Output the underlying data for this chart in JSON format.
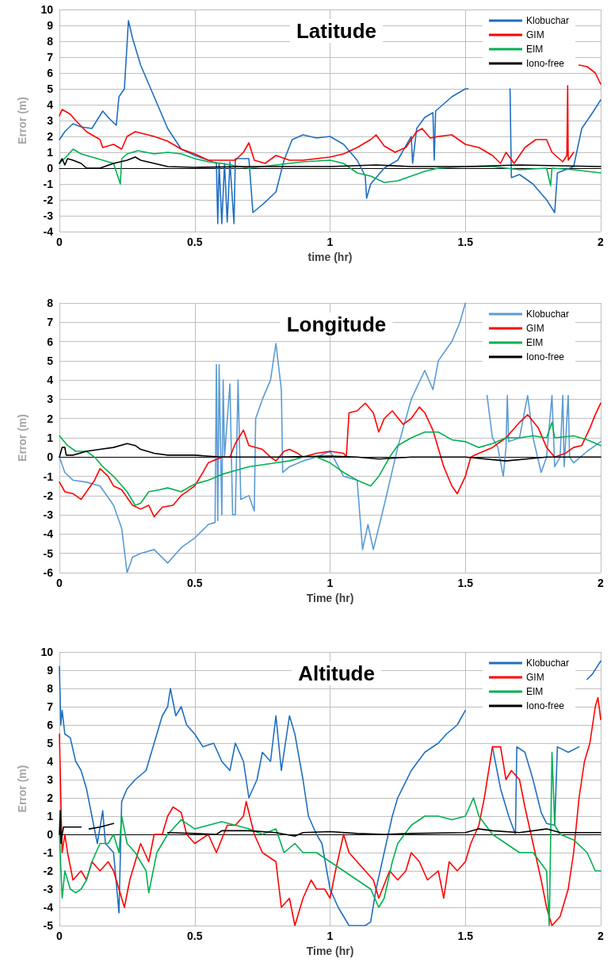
{
  "chart_data": [
    {
      "type": "line",
      "title": "Latitude",
      "xlabel": "time (hr)",
      "ylabel": "Error (m)",
      "xlim": [
        0,
        2
      ],
      "xticks": [
        0,
        0.5,
        1,
        1.5,
        2
      ],
      "ylim": [
        -4,
        10
      ],
      "yticks": [
        -4,
        -3,
        -2,
        -1,
        0,
        1,
        2,
        3,
        4,
        5,
        6,
        7,
        8,
        9,
        10
      ],
      "grid": true,
      "legend": "top right",
      "marker": "none",
      "line_style": "solid",
      "series": [
        {
          "name": "Klobuchar",
          "color": "#1f6fc0",
          "x": [
            0,
            0.02,
            0.05,
            0.08,
            0.12,
            0.16,
            0.18,
            0.21,
            0.22,
            0.24,
            0.255,
            0.27,
            0.3,
            0.35,
            0.4,
            0.45,
            0.5,
            0.55,
            0.58,
            0.585,
            0.59,
            0.6,
            0.61,
            0.62,
            0.63,
            0.645,
            0.65,
            0.7,
            0.715,
            0.75,
            0.8,
            0.83,
            0.86,
            0.9,
            0.95,
            1.0,
            1.05,
            1.1,
            1.13,
            1.135,
            1.15,
            1.2,
            1.25,
            1.3,
            1.305,
            1.32,
            1.35,
            1.38,
            1.385,
            1.39,
            1.45,
            1.5,
            1.51,
            1.54,
            1.665,
            1.67,
            1.7,
            1.75,
            1.8,
            1.83,
            1.84,
            1.9,
            1.93,
            1.97,
            2.0
          ],
          "values": [
            1.8,
            2.3,
            2.8,
            2.6,
            2.5,
            3.6,
            3.2,
            2.7,
            4.5,
            5,
            9.3,
            8.2,
            6.5,
            4.5,
            2.5,
            1.2,
            0.8,
            0.5,
            0.3,
            -3.5,
            0.3,
            -3.5,
            0.3,
            -3.4,
            0.4,
            -3.5,
            0.6,
            0.6,
            -2.8,
            -2.3,
            -1.5,
            0.5,
            1.8,
            2.1,
            1.9,
            2.0,
            1.5,
            0.5,
            -0.5,
            -1.9,
            -1.0,
            0.0,
            0.5,
            2.0,
            0.3,
            2.5,
            3.2,
            3.5,
            0.5,
            3.6,
            4.5,
            5.0,
            5.0,
            null,
            5.0,
            -0.6,
            -0.4,
            -1.0,
            -2.0,
            -2.8,
            -0.3,
            0.1,
            2.5,
            3.5,
            4.3
          ]
        },
        {
          "name": "GIM",
          "color": "#ff0000",
          "x": [
            0,
            0.01,
            0.04,
            0.06,
            0.1,
            0.15,
            0.16,
            0.2,
            0.23,
            0.25,
            0.28,
            0.35,
            0.4,
            0.45,
            0.5,
            0.55,
            0.65,
            0.68,
            0.7,
            0.72,
            0.76,
            0.8,
            0.85,
            0.9,
            0.95,
            1.0,
            1.05,
            1.1,
            1.15,
            1.17,
            1.2,
            1.24,
            1.28,
            1.32,
            1.34,
            1.37,
            1.4,
            1.45,
            1.5,
            1.55,
            1.6,
            1.63,
            1.65,
            1.68,
            1.72,
            1.76,
            1.8,
            1.82,
            1.86,
            1.875,
            1.878,
            1.88,
            1.9,
            1.91,
            1.92,
            1.95,
            1.98,
            2.0
          ],
          "values": [
            3.3,
            3.7,
            3.4,
            3.0,
            2.3,
            1.8,
            1.3,
            1.5,
            1.2,
            2.0,
            2.3,
            2.0,
            1.7,
            1.2,
            0.9,
            0.5,
            0.5,
            1.0,
            1.6,
            0.5,
            0.3,
            0.8,
            0.5,
            0.5,
            0.6,
            0.7,
            0.9,
            1.3,
            1.8,
            2.1,
            1.4,
            1.0,
            1.3,
            2.3,
            2.5,
            1.9,
            2.0,
            2.1,
            1.5,
            1.3,
            0.8,
            0.3,
            1.0,
            0.3,
            1.3,
            1.8,
            1.8,
            1.0,
            0.4,
            0.8,
            5.2,
            0.5,
            1.0,
            null,
            6.5,
            6.4,
            6.0,
            5.3
          ]
        },
        {
          "name": "EIM",
          "color": "#00b050",
          "x": [
            0,
            0.03,
            0.05,
            0.08,
            0.12,
            0.16,
            0.2,
            0.225,
            0.23,
            0.25,
            0.29,
            0.35,
            0.4,
            0.45,
            0.5,
            0.55,
            0.6,
            0.7,
            0.8,
            0.9,
            1.0,
            1.05,
            1.1,
            1.15,
            1.2,
            1.25,
            1.3,
            1.35,
            1.4,
            1.5,
            1.6,
            1.7,
            1.8,
            1.815,
            1.82,
            1.9,
            2.0
          ],
          "values": [
            0.3,
            0.8,
            1.2,
            0.9,
            0.7,
            0.5,
            0.3,
            -1.0,
            0.6,
            0.9,
            1.1,
            0.9,
            1.0,
            0.9,
            0.6,
            0.4,
            0.3,
            0.0,
            0.2,
            0.4,
            0.5,
            0.3,
            -0.3,
            -0.5,
            -0.9,
            -0.8,
            -0.5,
            -0.2,
            0.0,
            0.1,
            0.1,
            -0.1,
            0.0,
            -1.1,
            0.0,
            -0.1,
            -0.3
          ]
        },
        {
          "name": "Iono-free",
          "color": "#000000",
          "x": [
            0,
            0.01,
            0.02,
            0.03,
            0.05,
            0.08,
            0.1,
            0.15,
            0.2,
            0.25,
            0.28,
            0.3,
            0.35,
            0.4,
            0.5,
            0.7,
            1.0,
            1.17,
            1.3,
            1.5,
            1.7,
            2.0
          ],
          "values": [
            0.3,
            0.6,
            0.2,
            0.6,
            0.5,
            0.3,
            0.0,
            0.0,
            0.3,
            0.5,
            0.7,
            0.5,
            0.3,
            0.1,
            0.05,
            0.1,
            0.1,
            0.2,
            0.1,
            0.1,
            0.2,
            0.1
          ]
        }
      ]
    },
    {
      "type": "line",
      "title": "Longitude",
      "xlabel": "Time (hr)",
      "ylabel": "Error (m)",
      "xlim": [
        0,
        2
      ],
      "xticks": [
        0,
        0.5,
        1,
        1.5,
        2
      ],
      "ylim": [
        -6,
        8
      ],
      "yticks": [
        -6,
        -5,
        -4,
        -3,
        -2,
        -1,
        0,
        1,
        2,
        3,
        4,
        5,
        6,
        7,
        8
      ],
      "grid": true,
      "legend": "top right",
      "marker": "none",
      "line_style": "solid",
      "series": [
        {
          "name": "Klobuchar",
          "color": "#5b9bd5",
          "x": [
            0,
            0.02,
            0.05,
            0.1,
            0.15,
            0.2,
            0.23,
            0.25,
            0.27,
            0.3,
            0.35,
            0.4,
            0.45,
            0.5,
            0.55,
            0.575,
            0.58,
            0.585,
            0.59,
            0.6,
            0.605,
            0.61,
            0.63,
            0.64,
            0.65,
            0.66,
            0.67,
            0.7,
            0.72,
            0.725,
            0.75,
            0.78,
            0.8,
            0.82,
            0.825,
            0.85,
            0.9,
            0.95,
            1.0,
            1.05,
            1.1,
            1.12,
            1.14,
            1.16,
            1.2,
            1.25,
            1.3,
            1.35,
            1.38,
            1.4,
            1.45,
            1.48,
            1.5,
            1.54,
            1.58,
            1.6,
            1.62,
            1.64,
            1.65,
            1.655,
            1.66,
            1.7,
            1.73,
            1.75,
            1.78,
            1.8,
            1.82,
            1.83,
            1.85,
            1.86,
            1.865,
            1.88,
            1.885,
            1.9,
            1.95,
            2.0
          ],
          "values": [
            0.0,
            -0.8,
            -1.2,
            -1.3,
            -1.5,
            -2.5,
            -3.7,
            -6.0,
            -5.2,
            -5.0,
            -4.8,
            -5.5,
            -4.7,
            -4.2,
            -3.5,
            -3.4,
            4.8,
            -3.3,
            4.8,
            -3.0,
            4.0,
            0.0,
            3.8,
            -3.0,
            -3.0,
            4.0,
            -2.2,
            -2.0,
            -2.8,
            2.0,
            3.0,
            4.0,
            5.9,
            3.5,
            -0.8,
            -0.5,
            -0.2,
            0.0,
            0.3,
            -1.0,
            -1.2,
            -4.8,
            -3.5,
            -4.8,
            -2.5,
            0.5,
            3.0,
            4.5,
            3.5,
            5.0,
            6.0,
            7.0,
            8.0,
            null,
            3.2,
            1.0,
            0.5,
            -1.0,
            0.5,
            3.2,
            0.8,
            1.0,
            3.2,
            1.0,
            -0.8,
            0.0,
            3.2,
            -0.5,
            0.0,
            3.2,
            -0.5,
            3.2,
            0.0,
            -0.3,
            0.3,
            0.8
          ]
        },
        {
          "name": "GIM",
          "color": "#ff0000",
          "x": [
            0,
            0.02,
            0.05,
            0.08,
            0.1,
            0.13,
            0.15,
            0.18,
            0.2,
            0.23,
            0.27,
            0.3,
            0.33,
            0.35,
            0.38,
            0.42,
            0.45,
            0.5,
            0.53,
            0.55,
            0.6,
            0.63,
            0.65,
            0.68,
            0.7,
            0.75,
            0.78,
            0.8,
            0.83,
            0.85,
            0.88,
            0.9,
            0.95,
            1.0,
            1.05,
            1.06,
            1.07,
            1.1,
            1.13,
            1.16,
            1.18,
            1.2,
            1.23,
            1.27,
            1.3,
            1.33,
            1.35,
            1.38,
            1.42,
            1.45,
            1.47,
            1.5,
            1.52,
            1.55,
            1.6,
            1.65,
            1.7,
            1.73,
            1.77,
            1.8,
            1.83,
            1.87,
            1.9,
            1.93,
            1.96,
            1.98,
            2.0
          ],
          "values": [
            -1.3,
            -1.8,
            -1.9,
            -2.2,
            -1.8,
            -1.2,
            -0.6,
            -1.0,
            -1.5,
            -1.7,
            -2.5,
            -2.7,
            -2.5,
            -3.1,
            -2.6,
            -2.5,
            -2.0,
            -1.5,
            -0.8,
            -0.3,
            0.0,
            0.0,
            0.7,
            1.4,
            0.6,
            0.4,
            0.0,
            -0.2,
            0.3,
            0.4,
            0.2,
            0.0,
            0.2,
            0.3,
            0.2,
            0.0,
            2.3,
            2.4,
            2.8,
            2.3,
            1.3,
            2.0,
            2.4,
            1.7,
            2.0,
            2.6,
            2.3,
            1.4,
            -0.5,
            -1.5,
            -1.9,
            -1.0,
            0.0,
            0.2,
            0.5,
            1.0,
            1.8,
            2.2,
            1.5,
            0.5,
            0.0,
            0.2,
            0.5,
            0.6,
            1.5,
            2.2,
            2.8
          ]
        },
        {
          "name": "EIM",
          "color": "#00b050",
          "x": [
            0,
            0.03,
            0.06,
            0.1,
            0.13,
            0.16,
            0.2,
            0.25,
            0.28,
            0.3,
            0.33,
            0.37,
            0.4,
            0.45,
            0.5,
            0.55,
            0.6,
            0.65,
            0.7,
            0.8,
            0.85,
            0.9,
            0.95,
            1.0,
            1.05,
            1.1,
            1.15,
            1.18,
            1.22,
            1.25,
            1.3,
            1.35,
            1.4,
            1.45,
            1.5,
            1.55,
            1.6,
            1.65,
            1.7,
            1.75,
            1.8,
            1.82,
            1.83,
            1.9,
            1.95,
            2.0
          ],
          "values": [
            1.1,
            0.6,
            0.3,
            0.3,
            0.0,
            -0.5,
            -1.0,
            -1.8,
            -2.5,
            -2.4,
            -1.8,
            -1.7,
            -1.6,
            -1.8,
            -1.4,
            -1.2,
            -0.9,
            -0.7,
            -0.5,
            -0.3,
            -0.2,
            0.0,
            0.0,
            -0.3,
            -0.8,
            -1.2,
            -1.5,
            -1.0,
            0.0,
            0.6,
            1.0,
            1.3,
            1.3,
            0.9,
            0.8,
            0.5,
            0.7,
            1.0,
            1.0,
            1.1,
            1.0,
            1.8,
            1.0,
            1.1,
            0.9,
            0.6
          ]
        },
        {
          "name": "Iono-free",
          "color": "#000000",
          "x": [
            0,
            0.01,
            0.02,
            0.025,
            0.05,
            0.1,
            0.15,
            0.2,
            0.25,
            0.28,
            0.3,
            0.35,
            0.4,
            0.5,
            0.6,
            0.8,
            1.0,
            1.1,
            1.18,
            1.3,
            1.5,
            1.65,
            1.8,
            2.0
          ],
          "values": [
            0.0,
            0.5,
            0.5,
            0.1,
            0.1,
            0.3,
            0.4,
            0.5,
            0.7,
            0.6,
            0.4,
            0.2,
            0.1,
            0.1,
            0.0,
            0.0,
            0.05,
            0.0,
            -0.1,
            0.0,
            0.0,
            -0.2,
            0.0,
            0.0
          ]
        }
      ]
    },
    {
      "type": "line",
      "title": "Altitude",
      "xlabel": "Time (hr)",
      "ylabel": "Error (m)",
      "xlim": [
        0,
        2
      ],
      "xticks": [
        0,
        0.5,
        1,
        1.5,
        2
      ],
      "ylim": [
        -5,
        10
      ],
      "yticks": [
        -5,
        -4,
        -3,
        -2,
        -1,
        0,
        1,
        2,
        3,
        4,
        5,
        6,
        7,
        8,
        9,
        10
      ],
      "grid": true,
      "legend": "top right",
      "marker": "none",
      "line_style": "solid",
      "series": [
        {
          "name": "Klobuchar",
          "color": "#1f6fc0",
          "x": [
            0,
            0.005,
            0.01,
            0.02,
            0.04,
            0.06,
            0.08,
            0.1,
            0.12,
            0.14,
            0.16,
            0.17,
            0.2,
            0.22,
            0.23,
            0.25,
            0.28,
            0.32,
            0.35,
            0.38,
            0.4,
            0.41,
            0.43,
            0.45,
            0.47,
            0.5,
            0.53,
            0.57,
            0.6,
            0.63,
            0.65,
            0.68,
            0.7,
            0.73,
            0.75,
            0.78,
            0.8,
            0.82,
            0.85,
            0.87,
            0.9,
            0.92,
            0.95,
            0.97,
            1.0,
            1.03,
            1.05,
            1.07,
            1.1,
            1.13,
            1.15,
            1.17,
            1.2,
            1.23,
            1.25,
            1.3,
            1.35,
            1.4,
            1.43,
            1.47,
            1.5,
            1.52,
            1.6,
            1.63,
            1.66,
            1.685,
            1.69,
            1.72,
            1.75,
            1.78,
            1.8,
            1.83,
            1.84,
            1.88,
            1.92,
            1.935,
            1.95,
            1.97,
            2.0
          ],
          "values": [
            9.2,
            6.0,
            6.8,
            5.5,
            5.3,
            4.0,
            3.5,
            2.5,
            1.0,
            -0.5,
            1.3,
            -0.5,
            -1.0,
            -4.3,
            1.8,
            2.5,
            3.0,
            3.5,
            5.0,
            6.5,
            7.0,
            8.0,
            6.5,
            7.0,
            6.0,
            5.5,
            4.8,
            5.0,
            4.0,
            3.5,
            5.0,
            4.0,
            2.0,
            3.0,
            4.5,
            4.0,
            6.5,
            3.5,
            6.5,
            5.5,
            3.0,
            1.0,
            0.0,
            -0.5,
            -3.0,
            -4.0,
            -4.5,
            -5.0,
            -5.0,
            -5.0,
            -4.8,
            -3.0,
            -1.0,
            1.0,
            2.0,
            3.5,
            4.5,
            5.0,
            5.5,
            6.0,
            6.8,
            null,
            4.8,
            2.5,
            1.0,
            0.0,
            4.8,
            4.5,
            3.0,
            1.2,
            0.6,
            0.5,
            4.8,
            4.5,
            4.8,
            null,
            8.5,
            8.8,
            9.5
          ]
        },
        {
          "name": "GIM",
          "color": "#ff0000",
          "x": [
            0,
            0.005,
            0.01,
            0.02,
            0.03,
            0.05,
            0.08,
            0.1,
            0.12,
            0.15,
            0.18,
            0.2,
            0.22,
            0.24,
            0.26,
            0.28,
            0.3,
            0.33,
            0.35,
            0.38,
            0.4,
            0.42,
            0.45,
            0.47,
            0.5,
            0.55,
            0.58,
            0.62,
            0.65,
            0.68,
            0.69,
            0.72,
            0.75,
            0.8,
            0.82,
            0.85,
            0.87,
            0.9,
            0.93,
            0.95,
            0.98,
            1.0,
            1.02,
            1.05,
            1.07,
            1.1,
            1.13,
            1.16,
            1.18,
            1.22,
            1.25,
            1.28,
            1.3,
            1.33,
            1.36,
            1.4,
            1.42,
            1.44,
            1.47,
            1.5,
            1.52,
            1.55,
            1.57,
            1.6,
            1.63,
            1.65,
            1.67,
            1.7,
            1.72,
            1.75,
            1.78,
            1.8,
            1.82,
            1.85,
            1.88,
            1.9,
            1.92,
            1.94,
            1.96,
            1.98,
            1.99,
            2.0
          ],
          "values": [
            5.5,
            2.0,
            -1.0,
            0.0,
            -1.0,
            -2.5,
            -2.0,
            -2.5,
            -1.5,
            -2.0,
            -1.5,
            -2.0,
            -3.0,
            -4.0,
            -2.5,
            -1.5,
            -0.5,
            -1.5,
            0.0,
            0.0,
            1.0,
            1.5,
            1.2,
            0.0,
            -0.5,
            0.0,
            -1.0,
            0.5,
            0.5,
            1.0,
            1.8,
            0.0,
            -1.0,
            -1.5,
            -4.0,
            -3.5,
            -5.0,
            -3.5,
            -2.5,
            -3.0,
            -3.0,
            -3.5,
            -2.0,
            0.0,
            -1.0,
            -1.5,
            -2.0,
            -2.5,
            -3.5,
            -2.0,
            -2.5,
            -2.0,
            -1.0,
            -1.5,
            -2.5,
            -2.0,
            -3.5,
            -1.5,
            -2.0,
            -1.5,
            -0.5,
            0.5,
            2.0,
            4.8,
            4.8,
            3.0,
            3.5,
            3.0,
            1.5,
            -0.5,
            -2.5,
            -4.0,
            -5.0,
            -4.5,
            -3.0,
            -1.0,
            2.0,
            4.0,
            5.0,
            7.0,
            7.5,
            6.3
          ]
        },
        {
          "name": "EIM",
          "color": "#00b050",
          "x": [
            0,
            0.01,
            0.02,
            0.04,
            0.06,
            0.08,
            0.1,
            0.12,
            0.15,
            0.18,
            0.2,
            0.22,
            0.23,
            0.25,
            0.28,
            0.3,
            0.32,
            0.33,
            0.36,
            0.4,
            0.45,
            0.5,
            0.55,
            0.6,
            0.65,
            0.7,
            0.75,
            0.8,
            0.83,
            0.87,
            0.9,
            0.95,
            1.0,
            1.05,
            1.1,
            1.15,
            1.18,
            1.2,
            1.23,
            1.25,
            1.3,
            1.35,
            1.4,
            1.45,
            1.5,
            1.53,
            1.55,
            1.6,
            1.65,
            1.7,
            1.75,
            1.8,
            1.81,
            1.82,
            1.83,
            1.85,
            1.9,
            1.95,
            1.98,
            2.0
          ],
          "values": [
            0.0,
            -3.5,
            -2.0,
            -3.0,
            -3.2,
            -3.0,
            -2.5,
            -1.5,
            -0.5,
            -0.5,
            0.0,
            -1.0,
            1.0,
            -0.5,
            -1.0,
            -1.5,
            -2.0,
            -3.2,
            -1.0,
            0.0,
            0.8,
            0.3,
            0.5,
            0.7,
            0.5,
            0.3,
            0.0,
            0.3,
            -1.0,
            -0.5,
            -1.0,
            -1.0,
            -1.5,
            -2.0,
            -2.5,
            -3.0,
            -4.0,
            -3.5,
            -1.5,
            -0.5,
            0.5,
            1.0,
            1.0,
            0.8,
            1.0,
            2.0,
            1.0,
            0.0,
            -0.5,
            -1.0,
            -1.0,
            -2.0,
            -5.0,
            4.5,
            0.5,
            0.0,
            -0.3,
            -1.0,
            -2.0,
            -2.0
          ]
        },
        {
          "name": "Iono-free",
          "color": "#000000",
          "x": [
            0,
            0.003,
            0.006,
            0.01,
            0.015,
            0.04,
            0.08,
            0.1,
            0.11,
            0.15,
            0.2,
            0.25,
            0.4,
            0.5,
            0.58,
            0.6,
            0.7,
            0.8,
            0.87,
            0.9,
            1.0,
            1.1,
            1.2,
            1.3,
            1.5,
            1.55,
            1.6,
            1.7,
            1.8,
            1.85,
            2.0
          ],
          "values": [
            0.0,
            1.3,
            -0.5,
            0.0,
            0.4,
            0.4,
            0.4,
            null,
            0.3,
            0.4,
            0.6,
            null,
            0.1,
            0.05,
            0.0,
            0.2,
            0.2,
            0.1,
            -0.1,
            0.1,
            0.15,
            0.05,
            0.0,
            0.05,
            0.1,
            0.3,
            0.2,
            0.1,
            0.3,
            0.1,
            0.1
          ]
        }
      ]
    }
  ]
}
